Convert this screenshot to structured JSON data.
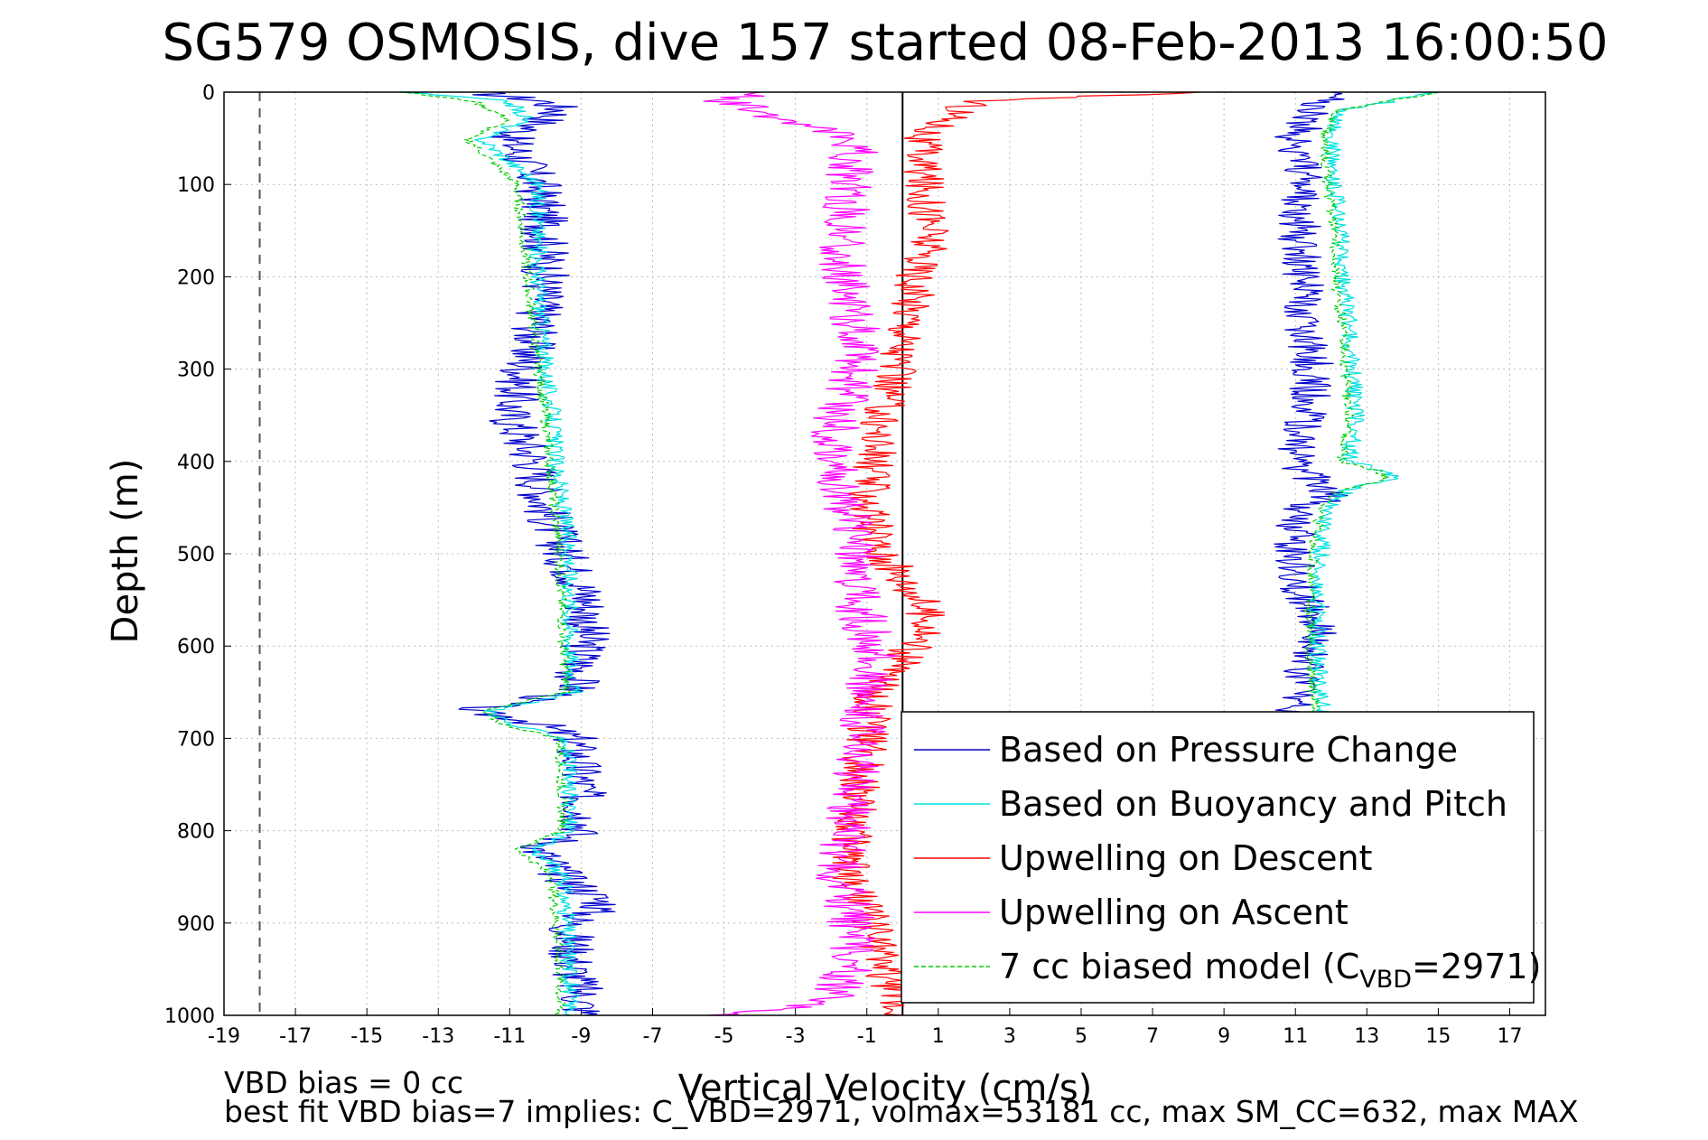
{
  "chart_data": {
    "type": "line",
    "title": "SG579 OSMOSIS, dive 157 started 08-Feb-2013 16:00:50",
    "xlabel": "Vertical Velocity (cm/s)",
    "ylabel": "Depth (m)",
    "xlim": [
      -19,
      18
    ],
    "ylim": [
      0,
      1000
    ],
    "y_reversed": true,
    "grid": true,
    "xticks": [
      -19,
      -17,
      -15,
      -13,
      -11,
      -9,
      -7,
      -5,
      -3,
      -1,
      1,
      3,
      5,
      7,
      9,
      11,
      13,
      15,
      17
    ],
    "yticks": [
      0,
      100,
      200,
      300,
      400,
      500,
      600,
      700,
      800,
      900,
      1000
    ],
    "reference_lines": [
      {
        "x": -18,
        "style": "dashed",
        "color": "#555555"
      },
      {
        "x": 0,
        "style": "solid",
        "color": "#000000"
      }
    ],
    "legend_location": "lower-right",
    "series": [
      {
        "name": "Based on Pressure Change",
        "color": "#0000cc",
        "depth": [
          0,
          10,
          20,
          50,
          100,
          150,
          200,
          250,
          300,
          350,
          400,
          450,
          500,
          550,
          600,
          650,
          670,
          680,
          700,
          750,
          800,
          820,
          850,
          880,
          900,
          950,
          980,
          1000
        ],
        "velocity": [
          -12,
          -10,
          -9.5,
          -11,
          -10.2,
          -10.0,
          -10.0,
          -10.2,
          -10.6,
          -11.0,
          -10.3,
          -10.0,
          -9.5,
          -8.8,
          -8.9,
          -9.2,
          -12.3,
          -10.5,
          -9.2,
          -9.0,
          -8.9,
          -10.2,
          -9.5,
          -8.3,
          -9.3,
          -9.2,
          -9.0,
          -8.9
        ]
      },
      {
        "name": "Based on Pressure Change",
        "color": "#0000cc",
        "depth": [
          985,
          950,
          900,
          850,
          800,
          750,
          720,
          700,
          680,
          650,
          600,
          580,
          550,
          500,
          450,
          440,
          420,
          400,
          350,
          300,
          250,
          200,
          150,
          100,
          50,
          20,
          0
        ],
        "velocity": [
          13,
          11.2,
          11.2,
          11.2,
          11.4,
          11.6,
          11.6,
          11.2,
          11.0,
          11.0,
          11.6,
          11.8,
          11.2,
          10.9,
          11.0,
          12.0,
          11.5,
          11.0,
          11.3,
          11.5,
          11.2,
          11.2,
          11.1,
          11.2,
          11.0,
          11.6,
          12
        ]
      },
      {
        "name": "Based on Buoyancy and Pitch",
        "color": "#00e0e0",
        "depth": [
          0,
          10,
          30,
          50,
          100,
          200,
          300,
          350,
          400,
          500,
          600,
          650,
          670,
          685,
          700,
          800,
          820,
          850,
          900,
          950,
          1000
        ],
        "velocity": [
          -14,
          -11,
          -10.5,
          -11.8,
          -10.2,
          -10.2,
          -10.0,
          -9.8,
          -9.7,
          -9.3,
          -9.3,
          -9.2,
          -11.5,
          -11.0,
          -9.4,
          -9.3,
          -10.3,
          -9.5,
          -9.4,
          -9.3,
          -9.3
        ]
      },
      {
        "name": "Based on Buoyancy and Pitch",
        "color": "#00e0e0",
        "depth": [
          985,
          950,
          900,
          850,
          800,
          750,
          700,
          650,
          600,
          550,
          500,
          450,
          430,
          420,
          410,
          400,
          350,
          300,
          250,
          200,
          150,
          100,
          50,
          20,
          0
        ],
        "velocity": [
          17.5,
          12.0,
          11.8,
          11.8,
          12.0,
          12.0,
          11.9,
          11.7,
          11.6,
          11.6,
          11.7,
          11.9,
          12.5,
          13.8,
          13.5,
          12.5,
          12.7,
          12.6,
          12.5,
          12.3,
          12.3,
          12.1,
          12.0,
          12.3,
          15
        ]
      },
      {
        "name": "Upwelling on Descent",
        "color": "#ff0000",
        "depth": [
          0,
          10,
          50,
          100,
          150,
          200,
          250,
          300,
          350,
          400,
          450,
          500,
          550,
          580,
          600,
          650,
          700,
          750,
          800,
          850,
          900,
          950,
          1000
        ],
        "velocity": [
          8,
          2,
          0.5,
          0.6,
          0.8,
          0.4,
          0.2,
          -0.2,
          -0.6,
          -0.8,
          -1.0,
          -0.6,
          0.5,
          0.8,
          0.3,
          -0.8,
          -1.0,
          -1.2,
          -1.4,
          -1.5,
          -0.8,
          -0.5,
          0
        ]
      },
      {
        "name": "Upwelling on Ascent",
        "color": "#ff00ff",
        "depth": [
          1000,
          985,
          950,
          900,
          850,
          800,
          750,
          700,
          650,
          600,
          550,
          500,
          450,
          400,
          350,
          300,
          250,
          200,
          150,
          100,
          50,
          10,
          0
        ],
        "velocity": [
          -4.8,
          -2,
          -1.5,
          -1.4,
          -1.8,
          -1.6,
          -1.3,
          -1.1,
          -1.0,
          -0.8,
          -1.3,
          -1.2,
          -1.6,
          -2.0,
          -1.8,
          -1.3,
          -1.3,
          -1.7,
          -1.6,
          -1.5,
          -1.3,
          -5,
          -4
        ]
      },
      {
        "name": "7 cc biased model",
        "color": "#00cc00",
        "style": "dashed",
        "depth": [
          0,
          10,
          30,
          50,
          100,
          200,
          300,
          350,
          400,
          500,
          600,
          650,
          670,
          685,
          700,
          800,
          820,
          850,
          900,
          950,
          1000
        ],
        "velocity": [
          -14,
          -12,
          -11,
          -12.2,
          -10.8,
          -10.5,
          -10.2,
          -10.0,
          -9.9,
          -9.6,
          -9.5,
          -9.4,
          -11.8,
          -11.2,
          -9.6,
          -9.5,
          -10.8,
          -9.8,
          -9.7,
          -9.6,
          -9.6
        ]
      },
      {
        "name": "7 cc biased model",
        "color": "#00cc00",
        "style": "dashed",
        "depth": [
          985,
          950,
          900,
          850,
          800,
          750,
          700,
          650,
          600,
          550,
          500,
          450,
          430,
          420,
          410,
          400,
          350,
          300,
          250,
          200,
          150,
          100,
          50,
          20,
          0
        ],
        "velocity": [
          17.5,
          11.8,
          11.6,
          11.6,
          11.8,
          11.8,
          11.7,
          11.5,
          11.4,
          11.4,
          11.5,
          11.7,
          12.3,
          13.6,
          13.3,
          12.3,
          12.5,
          12.4,
          12.3,
          12.1,
          12.1,
          11.9,
          11.8,
          12.1,
          15
        ]
      }
    ],
    "legend": [
      {
        "label": "Based on Pressure Change",
        "color": "#0000cc",
        "style": "solid"
      },
      {
        "label": "Based on Buoyancy and Pitch",
        "color": "#00e0e0",
        "style": "solid"
      },
      {
        "label": "Upwelling on Descent",
        "color": "#ff0000",
        "style": "solid"
      },
      {
        "label": "Upwelling on Ascent",
        "color": "#ff00ff",
        "style": "solid"
      },
      {
        "label": "7 cc biased model (C",
        "sub": "VBD",
        "suffix": "=2971)",
        "color": "#00cc00",
        "style": "dashed"
      }
    ],
    "annotations": [
      "VBD bias = 0 cc",
      "best fit VBD bias=7 implies: C_VBD=2971, volmax=53181 cc, max SM_CC=632, max MAX"
    ]
  }
}
